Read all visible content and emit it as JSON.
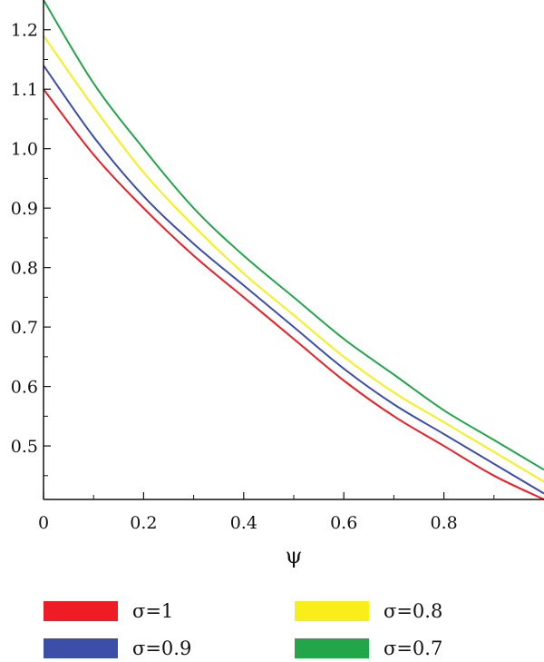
{
  "chart_data": {
    "type": "line",
    "xlabel": "ψ",
    "ylabel": "",
    "xlim": [
      0,
      1.0
    ],
    "ylim": [
      0.41,
      1.25
    ],
    "x_ticks": [
      0,
      0.2,
      0.4,
      0.6,
      0.8
    ],
    "x_tick_labels": [
      "0",
      "0.2",
      "0.4",
      "0.6",
      "0.8"
    ],
    "y_ticks": [
      0.5,
      0.6,
      0.7,
      0.8,
      0.9,
      1.0,
      1.1,
      1.2
    ],
    "y_tick_labels": [
      "0.5",
      "0.6",
      "0.7",
      "0.8",
      "0.9",
      "1.0",
      "1.1",
      "1.2"
    ],
    "grid": false,
    "legend_position": "bottom",
    "x": [
      0,
      0.1,
      0.2,
      0.3,
      0.4,
      0.5,
      0.6,
      0.7,
      0.8,
      0.9,
      1.0
    ],
    "series": [
      {
        "name": "σ=1",
        "color": "#ee1c25",
        "values": [
          1.1,
          0.99,
          0.9,
          0.82,
          0.75,
          0.68,
          0.61,
          0.55,
          0.5,
          0.45,
          0.41
        ]
      },
      {
        "name": "σ=0.9",
        "color": "#3b4ea8",
        "values": [
          1.14,
          1.02,
          0.92,
          0.84,
          0.77,
          0.7,
          0.63,
          0.57,
          0.52,
          0.47,
          0.42
        ]
      },
      {
        "name": "σ=0.8",
        "color": "#f7ee1a",
        "values": [
          1.19,
          1.07,
          0.96,
          0.87,
          0.79,
          0.72,
          0.65,
          0.59,
          0.54,
          0.49,
          0.44
        ]
      },
      {
        "name": "σ=0.7",
        "color": "#22a649",
        "values": [
          1.25,
          1.11,
          1.0,
          0.9,
          0.82,
          0.75,
          0.68,
          0.62,
          0.56,
          0.51,
          0.46
        ]
      }
    ]
  }
}
